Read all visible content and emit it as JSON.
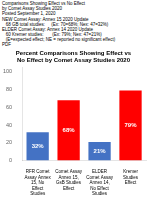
{
  "chart_data": {
    "type": "bar",
    "title": "Percent Comparisons Showing Effect vs\nNo Effect by Comet Assay Studies 2020",
    "annotations": [
      "Comparisons Showing Effect vs No Effect",
      "by Comet Assay Studies 2020",
      "Posted September 1, 2020",
      "NEW Comet Assay: Annex 15 2020 Update",
      "   68 GB total studies:     (Ex: 70=68%; Nex: 47=32%)",
      "ELDER Comet Assay: Annex 14 2020 Update",
      "   60 Kremer studies:       (Ex: 79%; Nex: 47=21%)",
      "   (E=expected effect; NE = reported no significant effect)",
      "PDF"
    ],
    "categories": [
      "RFR Comet\nAssay Annex\n15, No\nEffect\nStudies",
      "Comet Assay\nAnnex 15,\nGsB Studies\nEffect",
      "ELDER\nComet Assay\nAnnex 14,\nNo Effect\nStudies",
      "Kremer\nStudies\nEffect"
    ],
    "values": [
      32.0,
      68.0,
      21.0,
      79.0
    ],
    "value_labels": [
      "32%",
      "68%",
      "21%",
      "79%"
    ],
    "colors": [
      "#4472c4",
      "#ff0000",
      "#4472c4",
      "#ff0000"
    ],
    "ylim": [
      0,
      105
    ],
    "yticks": [
      0,
      20,
      40,
      60,
      80,
      100
    ],
    "grid": false,
    "data_labels": true
  }
}
